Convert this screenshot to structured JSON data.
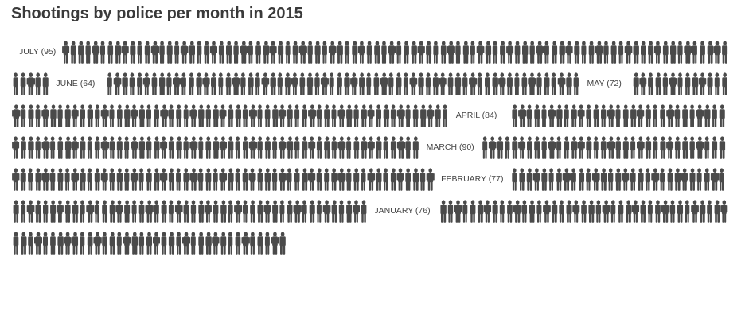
{
  "title": "Shootings by police per month in 2015",
  "colors": {
    "figure": "#4a4a4a",
    "label": "#444444",
    "title": "#3a3a3a",
    "background": "#ffffff"
  },
  "icon": "person-silhouette-icon",
  "chart_data": {
    "type": "pictogram",
    "title": "Shootings by police per month in 2015",
    "unit": "one figure = one shooting",
    "order": "most recent month first",
    "months": [
      {
        "name": "JULY",
        "label": "JULY (95)",
        "count": 95
      },
      {
        "name": "JUNE",
        "label": "JUNE (64)",
        "count": 64
      },
      {
        "name": "MAY",
        "label": "MAY (72)",
        "count": 72
      },
      {
        "name": "APRIL",
        "label": "APRIL (84)",
        "count": 84
      },
      {
        "name": "MARCH",
        "label": "MARCH (90)",
        "count": 90
      },
      {
        "name": "FEBRUARY",
        "label": "FEBRUARY (77)",
        "count": 77
      },
      {
        "name": "JANUARY",
        "label": "JANUARY (76)",
        "count": 76
      }
    ]
  }
}
